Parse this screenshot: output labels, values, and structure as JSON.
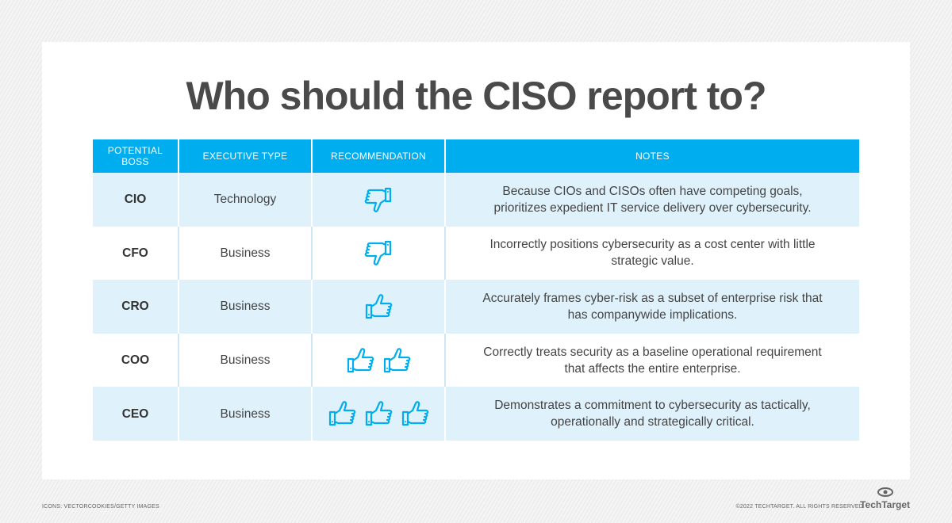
{
  "title": "Who should the CISO report to?",
  "headers": [
    "POTENTIAL BOSS",
    "EXECUTIVE TYPE",
    "RECOMMENDATION",
    "NOTES"
  ],
  "rows": [
    {
      "boss": "CIO",
      "type": "Technology",
      "rec": "thumbs-down",
      "count": 1,
      "notes": "Because CIOs and CISOs often have competing goals, prioritizes expedient IT service delivery over cybersecurity."
    },
    {
      "boss": "CFO",
      "type": "Business",
      "rec": "thumbs-down",
      "count": 1,
      "notes": "Incorrectly positions cybersecurity as a cost center with little strategic value."
    },
    {
      "boss": "CRO",
      "type": "Business",
      "rec": "thumbs-up",
      "count": 1,
      "notes": "Accurately frames cyber-risk as a subset of enterprise risk that has companywide implications."
    },
    {
      "boss": "COO",
      "type": "Business",
      "rec": "thumbs-up",
      "count": 2,
      "notes": "Correctly treats security as a baseline operational requirement that affects the entire enterprise."
    },
    {
      "boss": "CEO",
      "type": "Business",
      "rec": "thumbs-up",
      "count": 3,
      "notes": "Demonstrates a commitment to cybersecurity as tactically, operationally and strategically critical."
    }
  ],
  "footer": {
    "credit": "ICONS: VECTORCOOKIES/GETTY IMAGES",
    "copyright": "©2022 TECHTARGET. ALL RIGHTS RESERVED",
    "logo": "TechTarget"
  },
  "colors": {
    "accent": "#00aeef",
    "row_alt": "#dff1fb"
  }
}
